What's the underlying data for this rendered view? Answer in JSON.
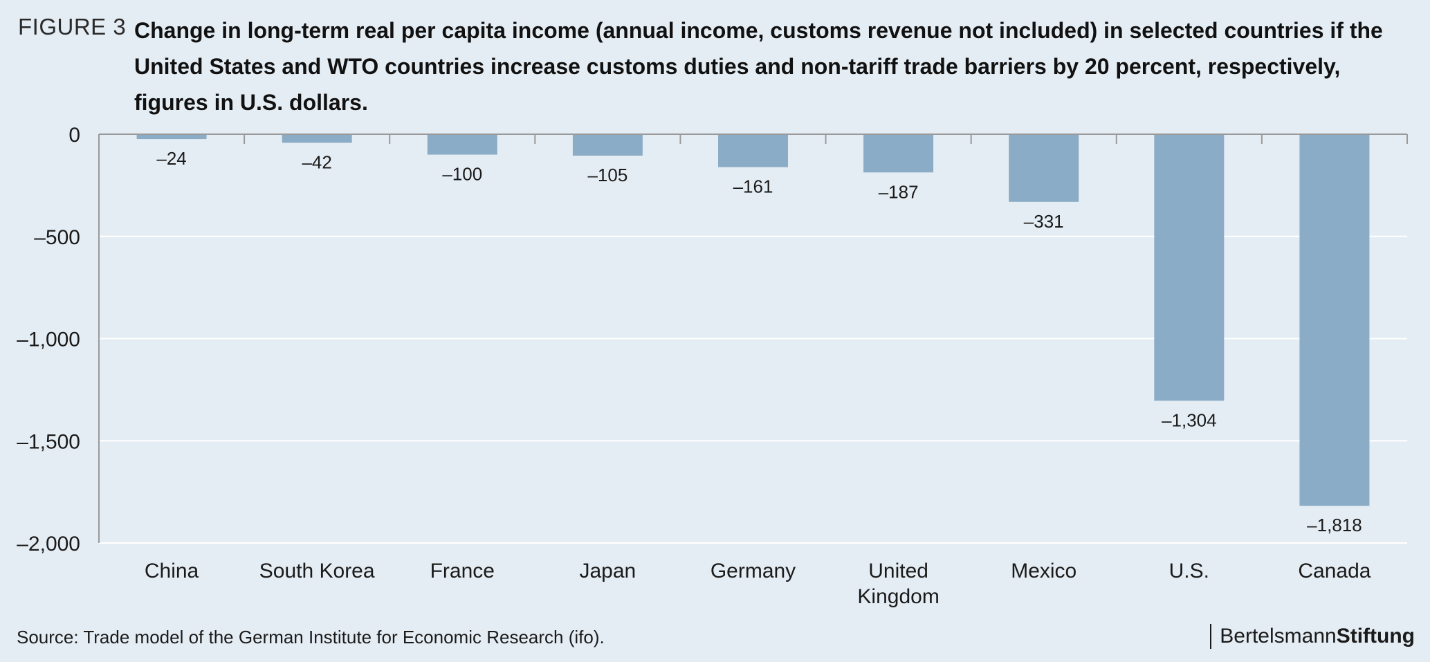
{
  "figure_label": "FIGURE 3",
  "source": "Source: Trade model of the German Institute for Economic Research (ifo).",
  "brand": {
    "part1": "Bertelsmann",
    "part2": "Stiftung"
  },
  "colors": {
    "bar": "#8aacc6",
    "background": "#e5edf4",
    "grid": "#ffffff",
    "axis": "#9a9a9a"
  },
  "chart_data": {
    "type": "bar",
    "title": "Change in long-term real per capita income (annual income, customs revenue not included) in selected countries if the United States and WTO countries increase customs duties and non-tariff trade barriers by 20 percent, respectively, figures in U.S. dollars.",
    "categories": [
      "China",
      "South Korea",
      "France",
      "Japan",
      "Germany",
      "United Kingdom",
      "Mexico",
      "U.S.",
      "Canada"
    ],
    "category_lines": [
      [
        "China"
      ],
      [
        "South Korea"
      ],
      [
        "France"
      ],
      [
        "Japan"
      ],
      [
        "Germany"
      ],
      [
        "United",
        "Kingdom"
      ],
      [
        "Mexico"
      ],
      [
        "U.S."
      ],
      [
        "Canada"
      ]
    ],
    "values": [
      -24,
      -42,
      -100,
      -105,
      -161,
      -187,
      -331,
      -1304,
      -1818
    ],
    "value_labels": [
      "–24",
      "–42",
      "–100",
      "–105",
      "–161",
      "–187",
      "–331",
      "–1,304",
      "–1,818"
    ],
    "ylim": [
      -2000,
      0
    ],
    "yticks": [
      0,
      -500,
      -1000,
      -1500,
      -2000
    ],
    "ytick_labels": [
      "0",
      "–500",
      "–1,000",
      "–1,500",
      "–2,000"
    ],
    "grid": true,
    "legend": "none"
  }
}
